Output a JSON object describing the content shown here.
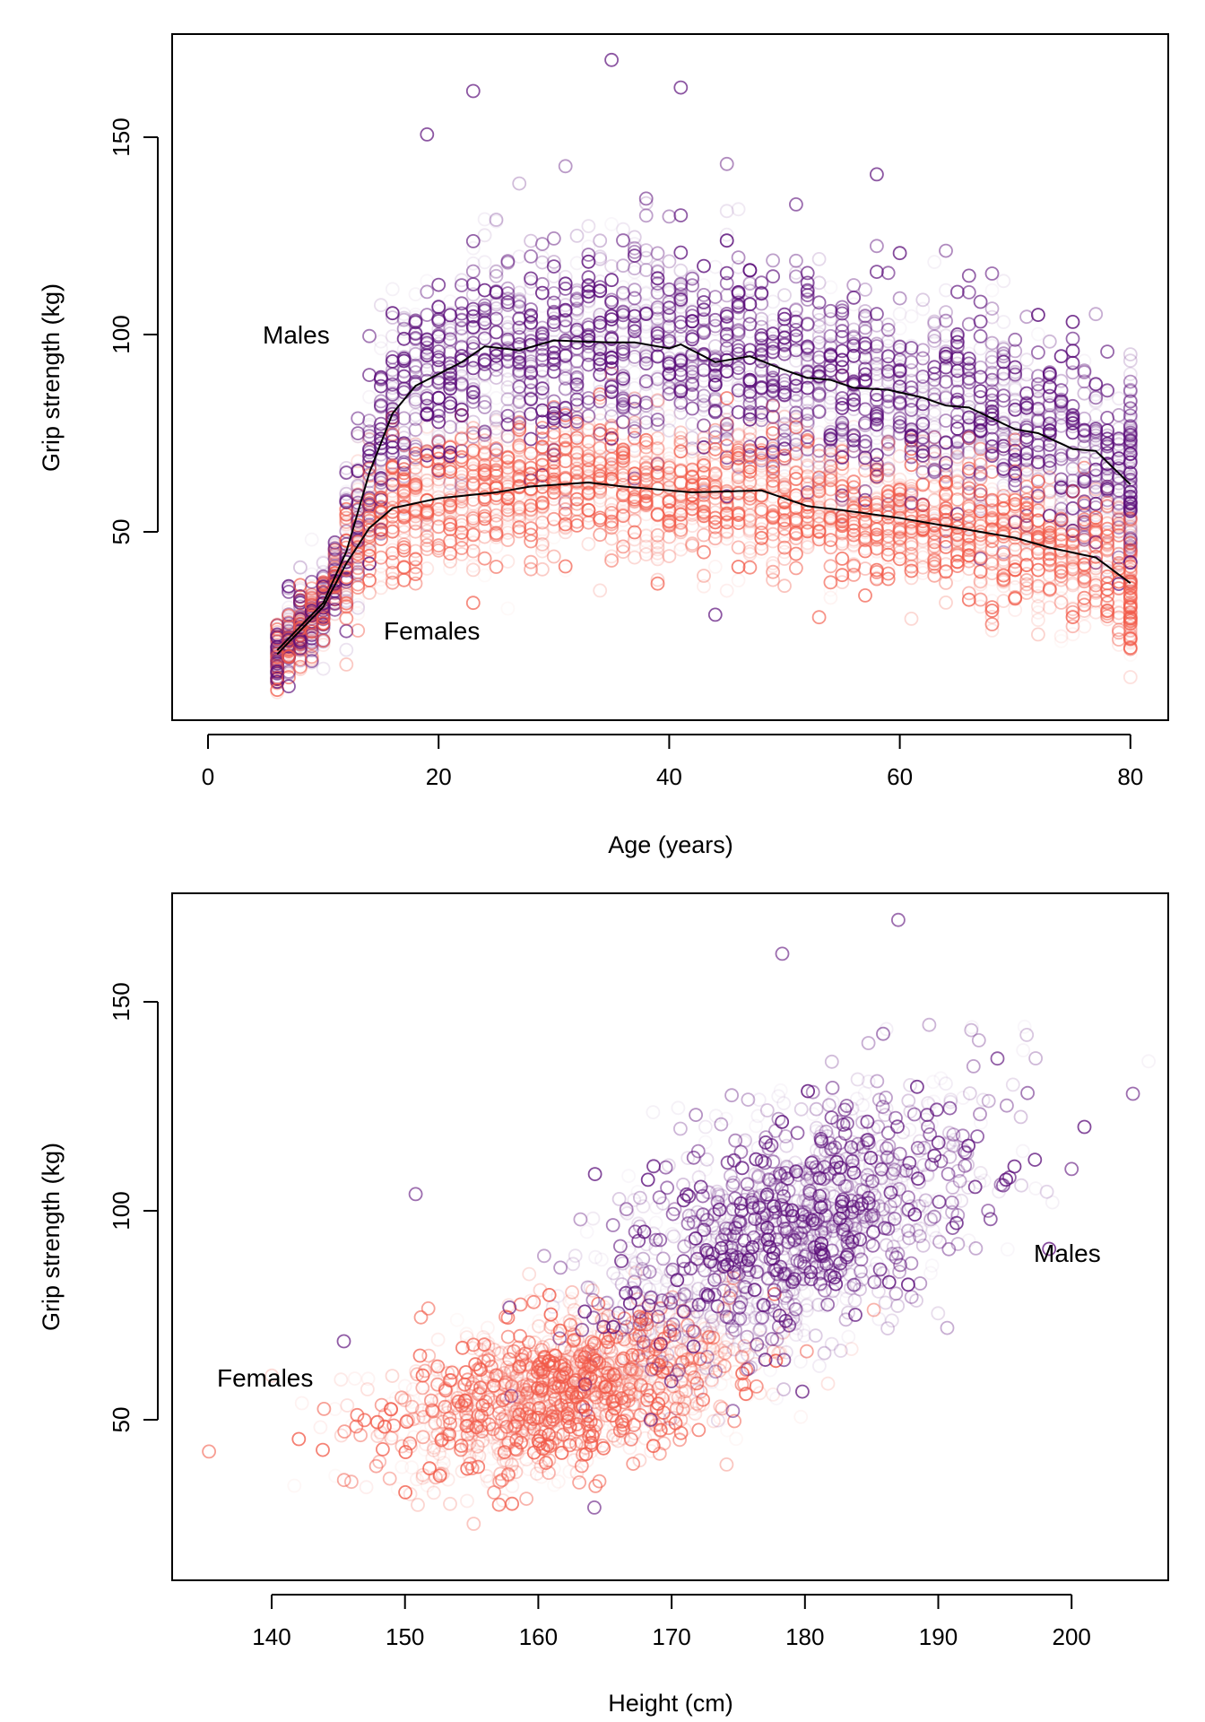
{
  "colors": {
    "males": "#5B0E7A",
    "females": "#F25B4A",
    "smooth": "#000000"
  },
  "chart_data": [
    {
      "type": "scatter",
      "xlabel": "Age (years)",
      "ylabel": "Grip strength (kg)",
      "xlim": [
        -4,
        84
      ],
      "ylim": [
        4,
        176
      ],
      "xticks": [
        "0",
        "20",
        "40",
        "60",
        "80"
      ],
      "yticks": [
        "50",
        "100",
        "150"
      ],
      "grid": false,
      "annotations": {
        "males": "Males",
        "females": "Females"
      },
      "smooth_curves": {
        "males": {
          "x": [
            6,
            8,
            10,
            12,
            14,
            16,
            18,
            20,
            22,
            24,
            27,
            30,
            35,
            37,
            40,
            41,
            44,
            47,
            50,
            52,
            54,
            56,
            59,
            62,
            64,
            66,
            70,
            72,
            75,
            77,
            80
          ],
          "y": [
            20,
            26,
            32,
            45,
            65,
            80,
            87,
            90,
            93,
            97,
            96,
            98.5,
            98,
            98,
            96.5,
            97.5,
            93,
            94.5,
            91,
            89,
            88.5,
            86.5,
            86,
            84,
            82,
            81.5,
            76,
            75,
            71,
            70.5,
            62
          ]
        },
        "females": {
          "x": [
            6,
            8,
            10,
            12,
            14,
            16,
            20,
            25,
            28,
            33,
            36,
            40,
            42,
            48,
            52,
            55,
            60,
            63,
            66,
            70,
            73,
            77,
            80
          ],
          "y": [
            19,
            25,
            31,
            42,
            51,
            56,
            58.5,
            60,
            61.5,
            62.5,
            61.5,
            60.5,
            60,
            60.5,
            56.5,
            55.5,
            53.5,
            52,
            50.5,
            48.5,
            46,
            43.5,
            37
          ]
        }
      },
      "outliers": {
        "males": [
          [
            35,
            169.6
          ],
          [
            23,
            161.7
          ],
          [
            41,
            162.6
          ],
          [
            58,
            140.6
          ],
          [
            19,
            150.7
          ],
          [
            44,
            29
          ]
        ],
        "females": [
          [
            23,
            32
          ]
        ]
      }
    },
    {
      "type": "scatter",
      "xlabel": "Height (cm)",
      "ylabel": "Grip strength (kg)",
      "xlim": [
        135.5,
        206
      ],
      "ylim": [
        6,
        176
      ],
      "xticks": [
        "140",
        "150",
        "160",
        "170",
        "180",
        "190",
        "200"
      ],
      "yticks": [
        "50",
        "100",
        "150"
      ],
      "grid": false,
      "annotations": {
        "males": "Males",
        "females": "Females"
      },
      "outliers": {
        "males": [
          [
            178.3,
            161.5
          ],
          [
            187.0,
            169.6
          ],
          [
            150.8,
            104
          ],
          [
            164.2,
            29
          ],
          [
            200,
            110
          ],
          [
            204.6,
            128
          ]
        ],
        "females": [
          [
            151.2,
            74.5
          ],
          [
            135.3,
            42.4
          ]
        ]
      }
    }
  ]
}
